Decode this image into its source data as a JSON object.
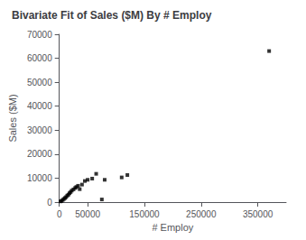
{
  "chart_data": {
    "type": "scatter",
    "title": "Bivariate Fit of Sales ($M) By # Employ",
    "xlabel": "# Employ",
    "ylabel": "Sales ($M)",
    "x": [
      2000,
      4000,
      6000,
      8000,
      10000,
      12000,
      14000,
      16000,
      18000,
      20000,
      22000,
      25000,
      28000,
      30000,
      33000,
      36000,
      40000,
      45000,
      50000,
      58000,
      65000,
      75000,
      80000,
      110000,
      120000,
      370000
    ],
    "values": [
      300,
      500,
      900,
      1300,
      1700,
      2100,
      2700,
      3100,
      3700,
      4200,
      4800,
      5300,
      5900,
      6300,
      6800,
      5400,
      7300,
      8800,
      9300,
      9800,
      11800,
      1100,
      9300,
      10300,
      11300,
      63000
    ],
    "color": "#000000",
    "marker": "square",
    "xlim": [
      0,
      400000
    ],
    "ylim": [
      0,
      70000
    ],
    "xticks": [
      0,
      50000,
      150000,
      250000,
      350000
    ],
    "yticks": [
      0,
      10000,
      20000,
      30000,
      40000,
      50000,
      60000,
      70000
    ],
    "grid": false
  }
}
